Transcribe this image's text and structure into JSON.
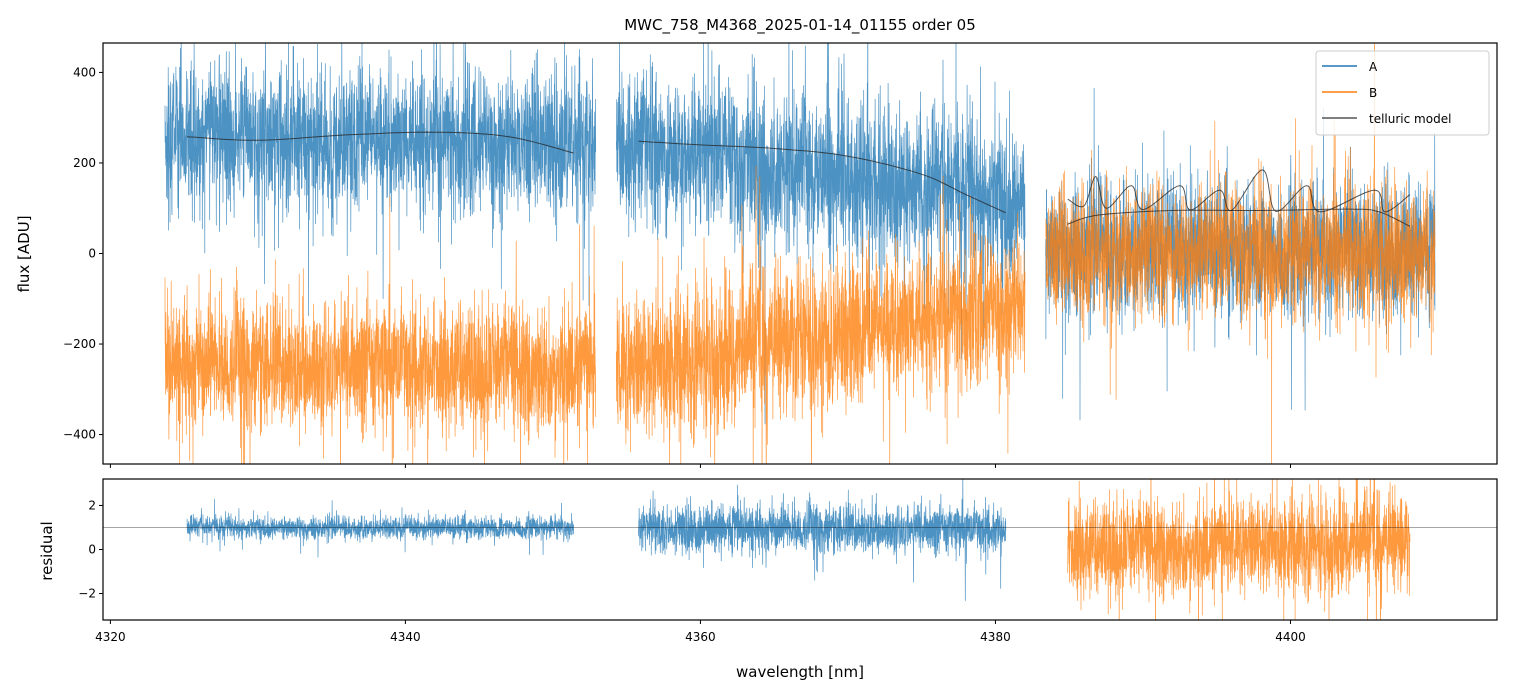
{
  "chart_data": {
    "type": "line",
    "title": "MWC_758_M4368_2025-01-14_01155  order 05",
    "xlabel": "wavelength [nm]",
    "xlim": [
      4319.5,
      4414.0
    ],
    "xticks": [
      4320,
      4340,
      4360,
      4380,
      4400
    ],
    "xtick_labels": [
      "4320",
      "4340",
      "4360",
      "4380",
      "4400"
    ],
    "legend": {
      "placement": "top-right",
      "entries": [
        "A",
        "B",
        "telluric model"
      ]
    },
    "colors": {
      "A": "#1f77b4",
      "B": "#ff7f0e",
      "telluric model": "#333333"
    },
    "panels": [
      {
        "name": "flux",
        "ylabel": "flux [ADU]",
        "ylim": [
          -465,
          465
        ],
        "yticks": [
          400,
          200,
          0,
          -200,
          -400
        ],
        "ytick_labels": [
          "400",
          "200",
          "0",
          "−200",
          "−400"
        ],
        "series": [
          {
            "name": "A",
            "segments": [
              {
                "x_range": [
                  4323.7,
                  4352.9
                ],
                "mean_start": 255,
                "mean_end": 245,
                "noise_sd": 95
              },
              {
                "x_range": [
                  4354.3,
                  4382.0
                ],
                "mean_start": 235,
                "mean_end": 110,
                "noise_sd": 100
              },
              {
                "x_range": [
                  4383.4,
                  4409.8
                ],
                "mean_start": 20,
                "mean_end": 0,
                "noise_sd": 85
              }
            ]
          },
          {
            "name": "B",
            "segments": [
              {
                "x_range": [
                  4323.7,
                  4352.9
                ],
                "mean_start": -250,
                "mean_end": -250,
                "noise_sd": 85
              },
              {
                "x_range": [
                  4354.3,
                  4382.0
                ],
                "mean_start": -260,
                "mean_end": -110,
                "noise_sd": 95
              },
              {
                "x_range": [
                  4383.4,
                  4409.8
                ],
                "mean_start": 0,
                "mean_end": 0,
                "noise_sd": 85
              }
            ]
          },
          {
            "name": "telluric model",
            "segments": [
              {
                "x": [
                  4325.2,
                  4330,
                  4336,
                  4342,
                  4347,
                  4351.4
                ],
                "y": [
                  258,
                  250,
                  262,
                  268,
                  258,
                  222
                ]
              },
              {
                "x": [
                  4355.8,
                  4360,
                  4365,
                  4370,
                  4375,
                  4378,
                  4380.7
                ],
                "y": [
                  248,
                  240,
                  232,
                  215,
                  175,
                  130,
                  90
                ]
              },
              {
                "x": [
                  4384.9,
                  4386.0,
                  4386.8,
                  4387.5,
                  4389.2,
                  4390.0,
                  4392.5,
                  4393.2,
                  4395.2,
                  4396.0,
                  4398.1,
                  4399.0,
                  4401.1,
                  4402.0,
                  4405.7,
                  4406.4,
                  4408.1
                ],
                "y": [
                  120,
                  105,
                  170,
                  100,
                  150,
                  97,
                  150,
                  96,
                  140,
                  95,
                  185,
                  93,
                  150,
                  92,
                  140,
                  92,
                  130
                ]
              },
              {
                "x": [
                  4384.9,
                  4387,
                  4392,
                  4398,
                  4404,
                  4406,
                  4408.1
                ],
                "y": [
                  65,
                  85,
                  95,
                  95,
                  98,
                  92,
                  60
                ]
              }
            ]
          }
        ]
      },
      {
        "name": "residual",
        "ylabel": "residual",
        "ylim": [
          -3.2,
          3.2
        ],
        "yticks": [
          2,
          0,
          -2
        ],
        "ytick_labels": [
          "2",
          "0",
          "−2"
        ],
        "reference_line": 1,
        "series": [
          {
            "name": "A",
            "segments": [
              {
                "x_range": [
                  4325.2,
                  4351.4
                ],
                "mean_start": 1.0,
                "mean_end": 1.0,
                "noise_sd": 0.3
              },
              {
                "x_range": [
                  4355.8,
                  4380.7
                ],
                "mean_start": 0.9,
                "mean_end": 0.9,
                "noise_sd": 0.65
              }
            ]
          },
          {
            "name": "B",
            "segments": [
              {
                "x_range": [
                  4384.9,
                  4408.1
                ],
                "mean_start": 0.1,
                "mean_end": 0.3,
                "noise_sd": 1.3
              }
            ]
          }
        ]
      }
    ]
  }
}
